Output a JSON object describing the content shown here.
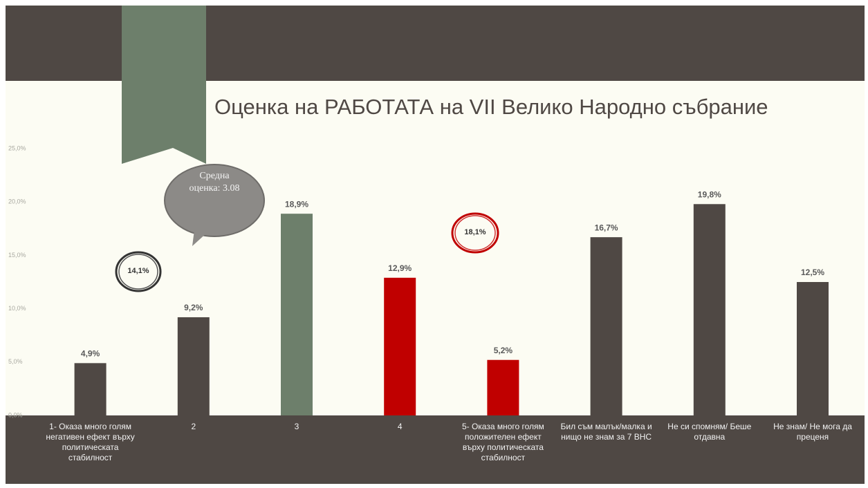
{
  "chart_data": {
    "type": "bar",
    "title": "Оценка на РАБОТАТА на VII Велико Народно събрание",
    "categories": [
      "1- Оказа много голям негативен ефект върху политическата стабилност",
      "2",
      "3",
      "4",
      "5- Оказа много голям положителен ефект върху политическата стабилност",
      "Бил съм малък/малка и нищо не знам за 7 ВНС",
      "Не си спомням/ Беше отдавна",
      "Не знам/ Не мога да преценя"
    ],
    "values": [
      4.9,
      9.2,
      18.9,
      12.9,
      5.2,
      16.7,
      19.8,
      12.5
    ],
    "value_labels": [
      "4,9%",
      "9,2%",
      "18,9%",
      "12,9%",
      "5,2%",
      "16,7%",
      "19,8%",
      "12,5%"
    ],
    "colors": [
      "#4f4844",
      "#4f4844",
      "#6d7f6b",
      "#c00000",
      "#c00000",
      "#4f4844",
      "#4f4844",
      "#4f4844"
    ],
    "ylim": [
      0,
      25
    ],
    "yticks": [
      {
        "value": 0,
        "label": "0,0%"
      },
      {
        "value": 5,
        "label": "5,0%"
      },
      {
        "value": 10,
        "label": "10,0%"
      },
      {
        "value": 15,
        "label": "15,0%"
      },
      {
        "value": 20,
        "label": "20,0%"
      },
      {
        "value": 25,
        "label": "25,0%"
      }
    ],
    "annotations": [
      "14,1%",
      "18,1%",
      "Средна оценка: 3.08"
    ]
  }
}
